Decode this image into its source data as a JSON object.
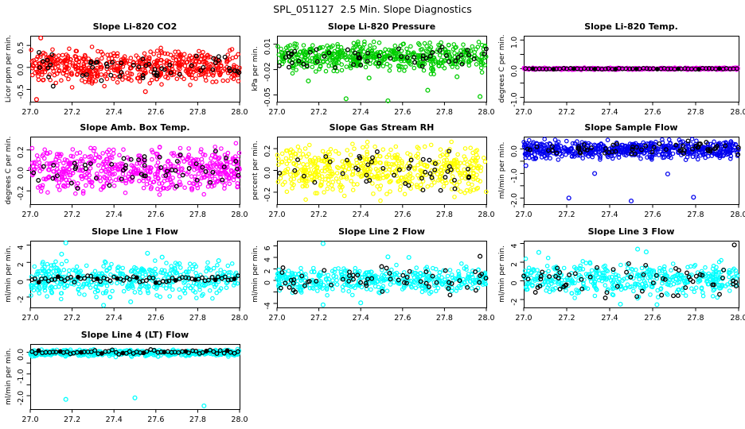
{
  "page": {
    "title": "SPL_051127  2.5 Min. Slope Diagnostics"
  },
  "chart_data": [
    {
      "type": "scatter",
      "title": "Slope Li-820 CO2",
      "ylabel": "Licor ppm per min.",
      "x_range": [
        27.0,
        28.0
      ],
      "x_tick_labels": [
        "27.0",
        "27.2",
        "27.4",
        "27.6",
        "27.8",
        "28.0"
      ],
      "y_range": [
        -0.78,
        0.72
      ],
      "y_ticks": [
        {
          "v": 0.5,
          "label": "0.5"
        },
        {
          "v": 0.0,
          "label": "0.0"
        },
        {
          "v": -0.5,
          "label": "-0.5"
        }
      ],
      "series": [
        {
          "name": "slope-values",
          "color": "#FF0000",
          "n": 540,
          "center": 0.02,
          "sd": 0.18,
          "clip": [
            -0.66,
            0.62
          ],
          "mode": "random"
        },
        {
          "name": "flagged-values",
          "color": "#000000",
          "n": 55,
          "center": 0.0,
          "sd": 0.15,
          "clip": [
            -0.45,
            0.55
          ],
          "mode": "random"
        }
      ],
      "outliers": [
        {
          "series": 0,
          "x": 27.05,
          "y": 0.67
        },
        {
          "series": 0,
          "x": 27.03,
          "y": -0.73
        },
        {
          "series": 0,
          "x": 27.55,
          "y": -0.55
        },
        {
          "series": 1,
          "x": 27.34,
          "y": -0.3
        }
      ],
      "seed": 101
    },
    {
      "type": "scatter",
      "title": "Slope Li-820 Pressure",
      "ylabel": "kPa per min.",
      "x_range": [
        27.0,
        28.0
      ],
      "x_tick_labels": [
        "27.0",
        "27.2",
        "27.4",
        "27.6",
        "27.8",
        "28.0"
      ],
      "y_range": [
        -0.058,
        0.02
      ],
      "y_ticks": [
        {
          "v": 0.01,
          "label": "0.01"
        },
        {
          "v": -0.02,
          "label": "-0.02"
        },
        {
          "v": -0.05,
          "label": "-0.05"
        }
      ],
      "series": [
        {
          "name": "slope-values",
          "color": "#00CD00",
          "n": 520,
          "center": -0.004,
          "sd": 0.0085,
          "clip": [
            -0.027,
            0.013
          ],
          "mode": "random"
        },
        {
          "name": "flagged-values",
          "color": "#000000",
          "n": 55,
          "center": -0.006,
          "sd": 0.006,
          "clip": [
            -0.021,
            0.007
          ],
          "mode": "random"
        }
      ],
      "outliers": [
        {
          "series": 0,
          "x": 27.33,
          "y": -0.0545
        },
        {
          "series": 0,
          "x": 27.53,
          "y": -0.057
        },
        {
          "series": 0,
          "x": 27.72,
          "y": -0.0445
        },
        {
          "series": 0,
          "x": 27.97,
          "y": -0.052
        },
        {
          "series": 0,
          "x": 27.15,
          "y": -0.0335
        },
        {
          "series": 0,
          "x": 27.44,
          "y": -0.03
        },
        {
          "series": 0,
          "x": 27.86,
          "y": -0.0285
        }
      ],
      "seed": 202
    },
    {
      "type": "scatter",
      "title": "Slope Li-820 Temp.",
      "ylabel": "degrees C per min.",
      "x_range": [
        27.0,
        28.0
      ],
      "x_tick_labels": [
        "27.0",
        "27.2",
        "27.4",
        "27.6",
        "27.8",
        "28.0"
      ],
      "y_range": [
        -1.15,
        1.15
      ],
      "y_ticks": [
        {
          "v": 1.0,
          "label": "1.0"
        },
        {
          "v": 0.5,
          "label": ""
        },
        {
          "v": 0.0,
          "label": "0.0"
        },
        {
          "v": -0.5,
          "label": ""
        },
        {
          "v": -1.0,
          "label": "-1.0"
        }
      ],
      "series": [
        {
          "name": "slope-values",
          "color": "#FF00FF",
          "n": 520,
          "center": 0.0,
          "sd": 0.015,
          "clip": [
            -0.05,
            0.05
          ],
          "mode": "random"
        },
        {
          "name": "flagged-values",
          "color": "#000000",
          "n": 62,
          "center": 0.0,
          "sd": 0.008,
          "clip": [
            -0.03,
            0.03
          ],
          "mode": "spaced"
        }
      ],
      "outliers": [],
      "seed": 303
    },
    {
      "type": "scatter",
      "title": "Slope Amb. Box Temp.",
      "ylabel": "degrees C per min.",
      "x_range": [
        27.0,
        28.0
      ],
      "x_tick_labels": [
        "27.0",
        "27.2",
        "27.4",
        "27.6",
        "27.8",
        "28.0"
      ],
      "y_range": [
        -0.33,
        0.33
      ],
      "y_ticks": [
        {
          "v": 0.2,
          "label": "0.2"
        },
        {
          "v": 0.0,
          "label": "0.0"
        },
        {
          "v": -0.2,
          "label": "-0.2"
        }
      ],
      "series": [
        {
          "name": "slope-values",
          "color": "#FF00FF",
          "n": 540,
          "center": 0.0,
          "sd": 0.105,
          "clip": [
            -0.3,
            0.3
          ],
          "mode": "random"
        },
        {
          "name": "flagged-values",
          "color": "#000000",
          "n": 55,
          "center": 0.0,
          "sd": 0.09,
          "clip": [
            -0.24,
            0.24
          ],
          "mode": "random"
        }
      ],
      "outliers": [],
      "seed": 404
    },
    {
      "type": "scatter",
      "title": "Slope Gas Stream RH",
      "ylabel": "percent per min.",
      "x_range": [
        27.0,
        28.0
      ],
      "x_tick_labels": [
        "27.0",
        "27.2",
        "27.4",
        "27.6",
        "27.8",
        "28.0"
      ],
      "y_range": [
        -0.31,
        0.31
      ],
      "y_ticks": [
        {
          "v": 0.2,
          "label": "0.2"
        },
        {
          "v": 0.0,
          "label": "0.0"
        },
        {
          "v": -0.2,
          "label": "-0.2"
        }
      ],
      "series": [
        {
          "name": "slope-values",
          "color": "#FFFF00",
          "n": 520,
          "center": 0.0,
          "sd": 0.1,
          "clip": [
            -0.28,
            0.28
          ],
          "mode": "random"
        },
        {
          "name": "flagged-values",
          "color": "#000000",
          "n": 48,
          "center": 0.0,
          "sd": 0.09,
          "clip": [
            -0.22,
            0.26
          ],
          "mode": "random"
        }
      ],
      "outliers": [],
      "seed": 505
    },
    {
      "type": "scatter",
      "title": "Slope Sample Flow",
      "ylabel": "ml/min per min.",
      "x_range": [
        27.0,
        28.0
      ],
      "x_tick_labels": [
        "27.0",
        "27.2",
        "27.4",
        "27.6",
        "27.8",
        "28.0"
      ],
      "y_range": [
        -2.25,
        0.5
      ],
      "y_ticks": [
        {
          "v": 0.0,
          "label": "0.0"
        },
        {
          "v": -0.5,
          "label": ""
        },
        {
          "v": -1.0,
          "label": "-1.0"
        },
        {
          "v": -1.5,
          "label": ""
        },
        {
          "v": -2.0,
          "label": "-2.0"
        }
      ],
      "series": [
        {
          "name": "slope-values",
          "color": "#0000EE",
          "n": 600,
          "center": -0.02,
          "sd": 0.17,
          "clip": [
            -0.5,
            0.42
          ],
          "mode": "random"
        },
        {
          "name": "flagged-values",
          "color": "#000000",
          "n": 58,
          "center": 0.02,
          "sd": 0.12,
          "clip": [
            -0.3,
            0.35
          ],
          "mode": "random"
        }
      ],
      "outliers": [
        {
          "series": 0,
          "x": 27.01,
          "y": -0.68
        },
        {
          "series": 0,
          "x": 27.33,
          "y": -1.0
        },
        {
          "series": 0,
          "x": 27.67,
          "y": -1.02
        },
        {
          "series": 0,
          "x": 27.21,
          "y": -2.0
        },
        {
          "series": 0,
          "x": 27.5,
          "y": -2.12
        },
        {
          "series": 0,
          "x": 27.79,
          "y": -1.97
        }
      ],
      "seed": 606
    },
    {
      "type": "scatter",
      "title": "Slope Line 1 Flow",
      "ylabel": "ml/min per min.",
      "x_range": [
        27.0,
        28.0
      ],
      "x_tick_labels": [
        "27.0",
        "27.2",
        "27.4",
        "27.6",
        "27.8",
        "28.0"
      ],
      "y_range": [
        -3.2,
        4.5
      ],
      "y_ticks": [
        {
          "v": 4,
          "label": "4"
        },
        {
          "v": 2,
          "label": "2"
        },
        {
          "v": 0,
          "label": "0"
        },
        {
          "v": -2,
          "label": "-2"
        }
      ],
      "series": [
        {
          "name": "slope-values",
          "color": "#00FFFF",
          "n": 440,
          "center": 0.1,
          "sd": 0.95,
          "clip": [
            -2.5,
            3.0
          ],
          "mode": "random"
        },
        {
          "name": "flagged-values",
          "color": "#000000",
          "n": 64,
          "center": 0.05,
          "sd": 0.18,
          "clip": [
            -0.6,
            0.6
          ],
          "mode": "spaced"
        }
      ],
      "outliers": [
        {
          "series": 0,
          "x": 27.17,
          "y": 4.25
        },
        {
          "series": 0,
          "x": 27.15,
          "y": 2.95
        },
        {
          "series": 0,
          "x": 27.56,
          "y": 3.05
        },
        {
          "series": 0,
          "x": 27.63,
          "y": 2.6
        },
        {
          "series": 0,
          "x": 27.35,
          "y": -2.95
        },
        {
          "series": 0,
          "x": 27.48,
          "y": -2.55
        },
        {
          "series": 0,
          "x": 27.9,
          "y": 2.2
        }
      ],
      "seed": 707
    },
    {
      "type": "scatter",
      "title": "Slope Line 2 Flow",
      "ylabel": "ml/min per min.",
      "x_range": [
        27.0,
        28.0
      ],
      "x_tick_labels": [
        "27.0",
        "27.2",
        "27.4",
        "27.6",
        "27.8",
        "28.0"
      ],
      "y_range": [
        -4.7,
        6.9
      ],
      "y_ticks": [
        {
          "v": 6,
          "label": "6"
        },
        {
          "v": 4,
          "label": "4"
        },
        {
          "v": 2,
          "label": "2"
        },
        {
          "v": 0,
          "label": "0"
        },
        {
          "v": -2,
          "label": ""
        },
        {
          "v": -4,
          "label": "-4"
        }
      ],
      "series": [
        {
          "name": "slope-values",
          "color": "#00FFFF",
          "n": 430,
          "center": 0.2,
          "sd": 1.0,
          "clip": [
            -3.4,
            3.2
          ],
          "mode": "random"
        },
        {
          "name": "flagged-values",
          "color": "#000000",
          "n": 58,
          "center": 0.0,
          "sd": 1.1,
          "clip": [
            -2.6,
            2.5
          ],
          "mode": "random"
        }
      ],
      "outliers": [
        {
          "series": 0,
          "x": 27.22,
          "y": 6.4
        },
        {
          "series": 0,
          "x": 27.22,
          "y": -4.25
        },
        {
          "series": 0,
          "x": 27.4,
          "y": -3.9
        },
        {
          "series": 1,
          "x": 27.97,
          "y": 4.2
        },
        {
          "series": 0,
          "x": 27.53,
          "y": 4.1
        },
        {
          "series": 0,
          "x": 27.63,
          "y": 4.0
        },
        {
          "series": 1,
          "x": 27.5,
          "y": 2.4
        }
      ],
      "seed": 808
    },
    {
      "type": "scatter",
      "title": "Slope Line 3 Flow",
      "ylabel": "ml/min per min.",
      "x_range": [
        27.0,
        28.0
      ],
      "x_tick_labels": [
        "27.0",
        "27.2",
        "27.4",
        "27.6",
        "27.8",
        "28.0"
      ],
      "y_range": [
        -2.85,
        4.3
      ],
      "y_ticks": [
        {
          "v": 4,
          "label": "4"
        },
        {
          "v": 2,
          "label": "2"
        },
        {
          "v": 0,
          "label": "0"
        },
        {
          "v": -2,
          "label": "-2"
        }
      ],
      "series": [
        {
          "name": "slope-values",
          "color": "#00FFFF",
          "n": 440,
          "center": 0.15,
          "sd": 0.85,
          "clip": [
            -2.4,
            2.6
          ],
          "mode": "random"
        },
        {
          "name": "flagged-values",
          "color": "#000000",
          "n": 60,
          "center": 0.0,
          "sd": 0.95,
          "clip": [
            -2.2,
            2.2
          ],
          "mode": "random"
        }
      ],
      "outliers": [
        {
          "series": 1,
          "x": 27.98,
          "y": 3.85
        },
        {
          "series": 0,
          "x": 27.07,
          "y": 3.05
        },
        {
          "series": 0,
          "x": 27.53,
          "y": 3.4
        },
        {
          "series": 0,
          "x": 27.57,
          "y": 3.1
        },
        {
          "series": 0,
          "x": 27.62,
          "y": -2.55
        },
        {
          "series": 0,
          "x": 27.45,
          "y": -2.5
        }
      ],
      "seed": 909
    },
    {
      "type": "scatter",
      "title": "Slope Line 4 (LT) Flow",
      "ylabel": "ml/min per min.",
      "x_range": [
        27.0,
        28.0
      ],
      "x_tick_labels": [
        "27.0",
        "27.2",
        "27.4",
        "27.6",
        "27.8",
        "28.0"
      ],
      "y_range": [
        -2.62,
        0.38
      ],
      "y_ticks": [
        {
          "v": 0.0,
          "label": "0.0"
        },
        {
          "v": -0.5,
          "label": ""
        },
        {
          "v": -1.0,
          "label": "-1.0"
        },
        {
          "v": -1.5,
          "label": ""
        },
        {
          "v": -2.0,
          "label": "-2.0"
        }
      ],
      "series": [
        {
          "name": "slope-values",
          "color": "#00FFFF",
          "n": 430,
          "center": -0.03,
          "sd": 0.07,
          "clip": [
            -0.22,
            0.15
          ],
          "mode": "random"
        },
        {
          "name": "flagged-values",
          "color": "#000000",
          "n": 60,
          "center": 0.01,
          "sd": 0.05,
          "clip": [
            -0.12,
            0.13
          ],
          "mode": "spaced"
        }
      ],
      "outliers": [
        {
          "series": 0,
          "x": 27.17,
          "y": -2.17
        },
        {
          "series": 0,
          "x": 27.5,
          "y": -2.1
        },
        {
          "series": 0,
          "x": 27.83,
          "y": -2.47
        }
      ],
      "seed": 1010
    }
  ]
}
